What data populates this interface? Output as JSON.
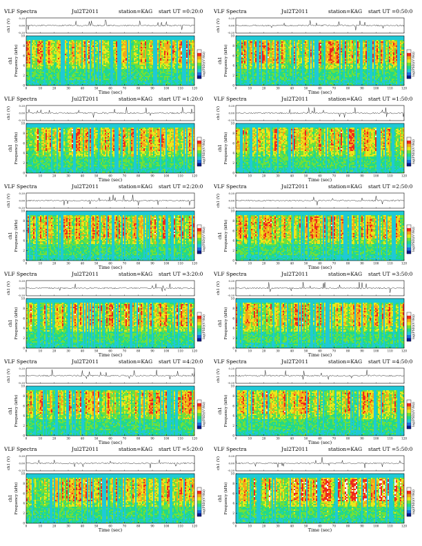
{
  "colors": {
    "background": "#ffffff",
    "colormap": [
      "#0b1a8c",
      "#1d6fe0",
      "#1fc9d6",
      "#22d98a",
      "#6fe03a",
      "#e8e81c",
      "#f2a81a",
      "#ef2a1a",
      "#f7f0f0"
    ],
    "trace": "#222222"
  },
  "labels": {
    "title_prefix": "VLF Spectra",
    "station": "station=KAG",
    "voltage_axis": "ch1 (V)",
    "freq_axis_top": "ch1",
    "freq_axis_bottom": "Frequency (kHz)",
    "time_axis": "Time (sec)",
    "colorbar_label": "log(PSD)(V²/Hz)"
  },
  "chart_data": [
    {
      "type": "heatmap",
      "title": "VLF Spectra",
      "date": "Jul2T2011",
      "station": "station=KAG",
      "start": "start UT =0:20:0",
      "xlabel": "Time (sec)",
      "ylabel": "Frequency (kHz)",
      "xlim": [
        0,
        120
      ],
      "ylim": [
        0,
        10
      ],
      "xticks": [
        0,
        10,
        20,
        30,
        40,
        50,
        60,
        70,
        80,
        90,
        100,
        110,
        120
      ],
      "yticks": [
        0,
        2,
        4,
        6,
        8,
        10
      ],
      "voltage_ticks": [
        "0.20",
        "0.00",
        "-0.20"
      ],
      "colorbar_label": "log(PSD)(V²/Hz)",
      "grid": false
    },
    {
      "type": "heatmap",
      "title": "VLF Spectra",
      "date": "Jul2T2011",
      "station": "station=KAG",
      "start": "start UT =0:50:0",
      "xlabel": "Time (sec)",
      "ylabel": "Frequency (kHz)",
      "xlim": [
        0,
        120
      ],
      "ylim": [
        0,
        10
      ],
      "xticks": [
        0,
        10,
        20,
        30,
        40,
        50,
        60,
        70,
        80,
        90,
        100,
        110,
        120
      ],
      "yticks": [
        0,
        2,
        4,
        6,
        8,
        10
      ],
      "voltage_ticks": [
        "0.20",
        "0.00",
        "-0.20"
      ],
      "colorbar_label": "log(PSD)(V²/Hz)",
      "grid": false
    },
    {
      "type": "heatmap",
      "title": "VLF Spectra",
      "date": "Jul2T2011",
      "station": "station=KAG",
      "start": "start UT =1:20:0",
      "xlabel": "Time (sec)",
      "ylabel": "Frequency (kHz)",
      "xlim": [
        0,
        120
      ],
      "ylim": [
        0,
        10
      ],
      "xticks": [
        0,
        10,
        20,
        30,
        40,
        50,
        60,
        70,
        80,
        90,
        100,
        110,
        120
      ],
      "yticks": [
        0,
        2,
        4,
        6,
        8,
        10
      ],
      "voltage_ticks": [
        "0.20",
        "0.00",
        "-0.20"
      ],
      "colorbar_label": "log(PSD)(V²/Hz)",
      "grid": false
    },
    {
      "type": "heatmap",
      "title": "VLF Spectra",
      "date": "Jul2T2011",
      "station": "station=KAG",
      "start": "start UT =1:50:0",
      "xlabel": "Time (sec)",
      "ylabel": "Frequency (kHz)",
      "xlim": [
        0,
        120
      ],
      "ylim": [
        0,
        10
      ],
      "xticks": [
        0,
        10,
        20,
        30,
        40,
        50,
        60,
        70,
        80,
        90,
        100,
        110,
        120
      ],
      "yticks": [
        0,
        2,
        4,
        6,
        8,
        10
      ],
      "voltage_ticks": [
        "0.20",
        "0.00",
        "-0.20"
      ],
      "colorbar_label": "log(PSD)(V²/Hz)",
      "grid": false
    },
    {
      "type": "heatmap",
      "title": "VLF Spectra",
      "date": "Jul2T2011",
      "station": "station=KAG",
      "start": "start UT =2:20:0",
      "xlabel": "Time (sec)",
      "ylabel": "Frequency (kHz)",
      "xlim": [
        0,
        120
      ],
      "ylim": [
        0,
        10
      ],
      "xticks": [
        0,
        10,
        20,
        30,
        40,
        50,
        60,
        70,
        80,
        90,
        100,
        110,
        120
      ],
      "yticks": [
        0,
        2,
        4,
        6,
        8,
        10
      ],
      "voltage_ticks": [
        "0.20",
        "0.00",
        "-0.20"
      ],
      "colorbar_label": "log(PSD)(V²/Hz)",
      "grid": false
    },
    {
      "type": "heatmap",
      "title": "VLF Spectra",
      "date": "Jul2T2011",
      "station": "station=KAG",
      "start": "start UT =2:50:0",
      "xlabel": "Time (sec)",
      "ylabel": "Frequency (kHz)",
      "xlim": [
        0,
        120
      ],
      "ylim": [
        0,
        10
      ],
      "xticks": [
        0,
        10,
        20,
        30,
        40,
        50,
        60,
        70,
        80,
        90,
        100,
        110,
        120
      ],
      "yticks": [
        0,
        2,
        4,
        6,
        8,
        10
      ],
      "voltage_ticks": [
        "0.20",
        "0.00",
        "-0.20"
      ],
      "colorbar_label": "log(PSD)(V²/Hz)",
      "grid": false
    },
    {
      "type": "heatmap",
      "title": "VLF Spectra",
      "date": "Jul2T2011",
      "station": "station=KAG",
      "start": "start UT =3:20:0",
      "xlabel": "Time (sec)",
      "ylabel": "Frequency (kHz)",
      "xlim": [
        0,
        120
      ],
      "ylim": [
        0,
        10
      ],
      "xticks": [
        0,
        10,
        20,
        30,
        40,
        50,
        60,
        70,
        80,
        90,
        100,
        110,
        120
      ],
      "yticks": [
        0,
        2,
        4,
        6,
        8,
        10
      ],
      "voltage_ticks": [
        "0.20",
        "0.00",
        "-0.20"
      ],
      "colorbar_label": "log(PSD)(V²/Hz)",
      "grid": false
    },
    {
      "type": "heatmap",
      "title": "VLF Spectra",
      "date": "Jul2T2011",
      "station": "station=KAG",
      "start": "start UT =3:50:0",
      "xlabel": "Time (sec)",
      "ylabel": "Frequency (kHz)",
      "xlim": [
        0,
        120
      ],
      "ylim": [
        0,
        10
      ],
      "xticks": [
        0,
        10,
        20,
        30,
        40,
        50,
        60,
        70,
        80,
        90,
        100,
        110,
        120
      ],
      "yticks": [
        0,
        2,
        4,
        6,
        8,
        10
      ],
      "voltage_ticks": [
        "0.20",
        "0.00",
        "-0.20"
      ],
      "colorbar_label": "log(PSD)(V²/Hz)",
      "grid": false
    },
    {
      "type": "heatmap",
      "title": "VLF Spectra",
      "date": "Jul2T2011",
      "station": "station=KAG",
      "start": "start UT =4:20:0",
      "xlabel": "Time (sec)",
      "ylabel": "Frequency (kHz)",
      "xlim": [
        0,
        120
      ],
      "ylim": [
        0,
        10
      ],
      "xticks": [
        0,
        10,
        20,
        30,
        40,
        50,
        60,
        70,
        80,
        90,
        100,
        110,
        120
      ],
      "yticks": [
        0,
        2,
        4,
        6,
        8,
        10
      ],
      "voltage_ticks": [
        "0.20",
        "0.00",
        "-0.20"
      ],
      "colorbar_label": "log(PSD)(V²/Hz)",
      "grid": false
    },
    {
      "type": "heatmap",
      "title": "VLF Spectra",
      "date": "Jul2T2011",
      "station": "station=KAG",
      "start": "start UT =4:50:0",
      "xlabel": "Time (sec)",
      "ylabel": "Frequency (kHz)",
      "xlim": [
        0,
        120
      ],
      "ylim": [
        0,
        10
      ],
      "xticks": [
        0,
        10,
        20,
        30,
        40,
        50,
        60,
        70,
        80,
        90,
        100,
        110,
        120
      ],
      "yticks": [
        0,
        2,
        4,
        6,
        8,
        10
      ],
      "voltage_ticks": [
        "0.20",
        "0.00",
        "-0.20"
      ],
      "colorbar_label": "log(PSD)(V²/Hz)",
      "grid": false
    },
    {
      "type": "heatmap",
      "title": "VLF Spectra",
      "date": "Jul2T2011",
      "station": "station=KAG",
      "start": "start UT =5:20:0",
      "xlabel": "Time (sec)",
      "ylabel": "Frequency (kHz)",
      "xlim": [
        0,
        120
      ],
      "ylim": [
        0,
        10
      ],
      "xticks": [
        0,
        10,
        20,
        30,
        40,
        50,
        60,
        70,
        80,
        90,
        100,
        110,
        120
      ],
      "yticks": [
        0,
        2,
        4,
        6,
        8,
        10
      ],
      "voltage_ticks": [
        "0.20",
        "0.00",
        "-0.20"
      ],
      "colorbar_label": "log(PSD)(V²/Hz)",
      "grid": false
    },
    {
      "type": "heatmap",
      "title": "VLF Spectra",
      "date": "Jul2T2011",
      "station": "station=KAG",
      "start": "start UT =5:50:0",
      "xlabel": "Time (sec)",
      "ylabel": "Frequency (kHz)",
      "xlim": [
        0,
        120
      ],
      "ylim": [
        0,
        10
      ],
      "xticks": [
        0,
        10,
        20,
        30,
        40,
        50,
        60,
        70,
        80,
        90,
        100,
        110,
        120
      ],
      "yticks": [
        0,
        2,
        4,
        6,
        8,
        10
      ],
      "voltage_ticks": [
        "0.20",
        "0.00",
        "-0.20"
      ],
      "colorbar_label": "log(PSD)(V²/Hz)",
      "grid": false
    }
  ]
}
